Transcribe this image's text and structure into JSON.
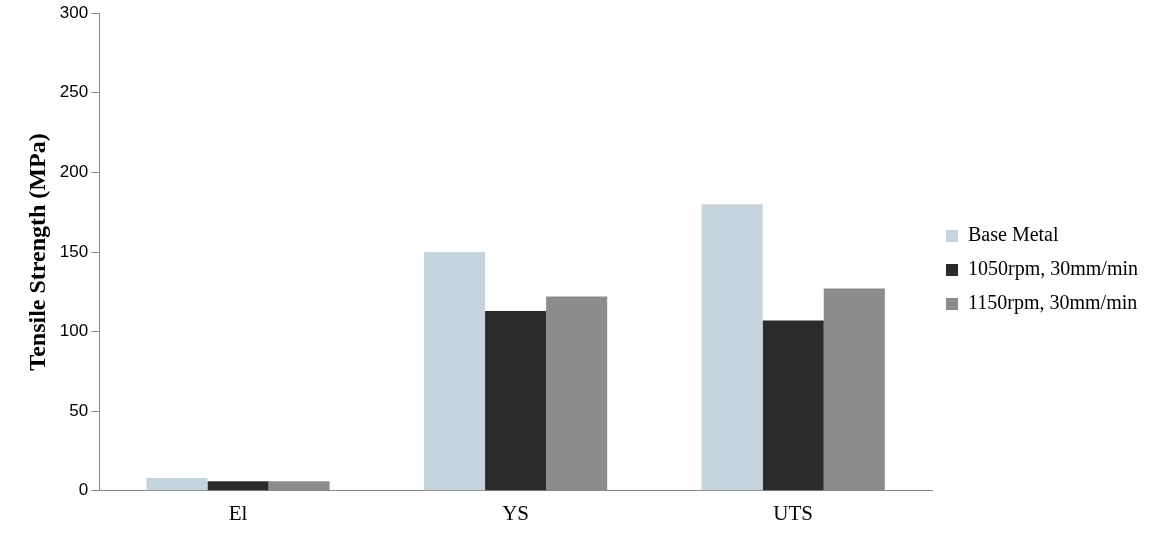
{
  "chart_data": {
    "type": "bar",
    "ylabel": "Tensile Strength (MPa)",
    "categories": [
      "El",
      "YS",
      "UTS"
    ],
    "series": [
      {
        "name": "Base Metal",
        "color": "#c5d3dc",
        "values": [
          8,
          150,
          180
        ]
      },
      {
        "name": "1050rpm, 30mm/min",
        "color": "#2b2b2b",
        "values": [
          6,
          113,
          107
        ]
      },
      {
        "name": "1150rpm, 30mm/min",
        "color": "#8c8c8c",
        "values": [
          6,
          122,
          127
        ]
      }
    ],
    "ylim": [
      0,
      300
    ],
    "yticks": [
      0,
      50,
      100,
      150,
      200,
      250,
      300
    ],
    "grid": false,
    "legend": "right"
  }
}
